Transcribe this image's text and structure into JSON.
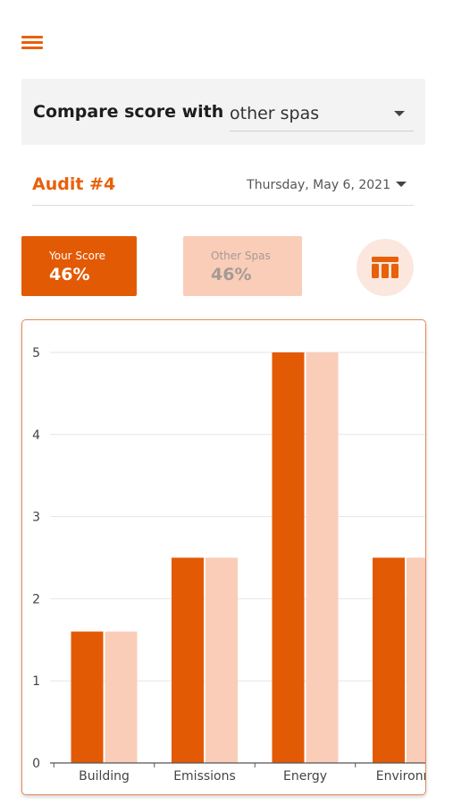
{
  "header": {
    "menu_icon": "hamburger-menu-icon"
  },
  "compare": {
    "label": "Compare score with",
    "selected": "other spas"
  },
  "audit": {
    "title": "Audit #4",
    "date": "Thursday, May 6, 2021"
  },
  "scores": {
    "your_label": "Your Score",
    "your_value": "46%",
    "other_label": "Other Spas",
    "other_value": "46%"
  },
  "table_toggle_icon": "table-icon",
  "colors": {
    "accent": "#e8600a",
    "your_bar": "#e35a05",
    "other_bar": "#f9cdb8",
    "toggle_bg": "#fbe7dd"
  },
  "chart_data": {
    "type": "bar",
    "categories": [
      "Building",
      "Emissions",
      "Energy",
      "Environm"
    ],
    "series": [
      {
        "name": "Your Score",
        "values": [
          1.6,
          2.5,
          5,
          2.5
        ]
      },
      {
        "name": "Other Spas",
        "values": [
          1.6,
          2.5,
          5,
          2.5
        ]
      }
    ],
    "ylim": [
      0,
      5
    ],
    "yticks": [
      0,
      1,
      2,
      3,
      4,
      5
    ],
    "grid": true,
    "legend": "none"
  }
}
